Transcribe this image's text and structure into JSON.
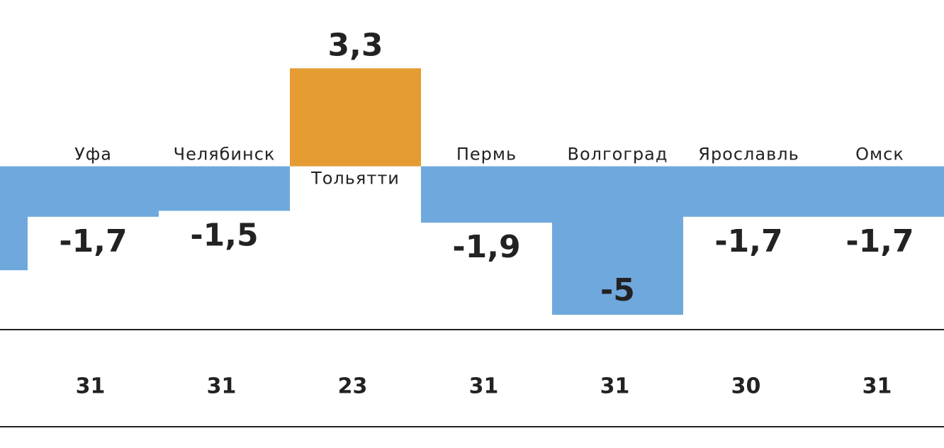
{
  "chart_data": {
    "type": "bar",
    "categories": [
      null,
      "Уфа",
      "Челябинск",
      "Тольятти",
      "Пермь",
      "Волгоград",
      "Ярославль",
      "Омск"
    ],
    "values": [
      -3.5,
      -1.7,
      -1.5,
      3.3,
      -1.9,
      -5,
      -1.7,
      -1.7
    ],
    "value_labels": [
      null,
      "-1,7",
      "-1,5",
      "3,3",
      "-1,9",
      "-5",
      "-1,7",
      "-1,7"
    ],
    "colors": [
      "#6fa8dc",
      "#6fa8dc",
      "#6fa8dc",
      "#e49c33",
      "#6fa8dc",
      "#6fa8dc",
      "#6fa8dc",
      "#6fa8dc"
    ],
    "row_values": [
      null,
      31,
      31,
      23,
      31,
      31,
      30,
      31
    ],
    "ylim": [
      -5.5,
      5.6
    ]
  }
}
